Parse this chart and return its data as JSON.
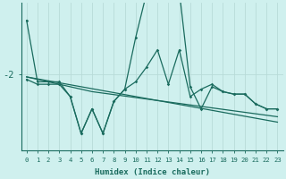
{
  "xlabel": "Humidex (Indice chaleur)",
  "background_color": "#cff0ee",
  "line_color": "#1a6b5e",
  "grid_color": "#b8dbd8",
  "x_values": [
    0,
    1,
    2,
    3,
    4,
    5,
    6,
    7,
    8,
    9,
    10,
    11,
    12,
    13,
    14,
    15,
    16,
    17,
    18,
    19,
    20,
    21,
    22,
    23
  ],
  "line_zigzag": [
    -2.1,
    -2.2,
    -2.2,
    -2.2,
    -2.45,
    -3.2,
    -2.7,
    -3.2,
    -2.55,
    -2.3,
    -2.15,
    -1.85,
    -1.5,
    -2.2,
    -1.5,
    -2.45,
    -2.3,
    -2.2,
    -2.35,
    -2.4,
    -2.4,
    -2.6,
    -2.7,
    -2.7
  ],
  "line_peak": [
    -0.9,
    -2.15,
    -2.15,
    -2.15,
    -2.45,
    -3.2,
    -2.7,
    -3.2,
    -2.55,
    -2.3,
    -1.25,
    -0.35,
    -0.3,
    -0.3,
    -0.3,
    -2.25,
    -2.7,
    -2.25,
    -2.35,
    -2.4,
    -2.4,
    -2.6,
    -2.7,
    -2.7
  ],
  "trend1": [
    -2.05,
    -2.1,
    -2.15,
    -2.2,
    -2.25,
    -2.3,
    -2.35,
    -2.38,
    -2.41,
    -2.44,
    -2.47,
    -2.5,
    -2.53,
    -2.56,
    -2.59,
    -2.62,
    -2.65,
    -2.68,
    -2.71,
    -2.74,
    -2.77,
    -2.8,
    -2.83,
    -2.86
  ],
  "trend2": [
    -2.05,
    -2.09,
    -2.13,
    -2.17,
    -2.21,
    -2.25,
    -2.29,
    -2.33,
    -2.37,
    -2.41,
    -2.45,
    -2.49,
    -2.53,
    -2.57,
    -2.61,
    -2.65,
    -2.69,
    -2.73,
    -2.77,
    -2.81,
    -2.85,
    -2.89,
    -2.93,
    -2.97
  ],
  "ytick_labels": [
    "-2"
  ],
  "ytick_positions": [
    -2.0
  ],
  "ylim": [
    -3.55,
    -0.55
  ],
  "xlim": [
    -0.5,
    23.5
  ],
  "xlabel_fontsize": 6.5,
  "xtick_fontsize": 5.2,
  "ytick_fontsize": 7.5
}
